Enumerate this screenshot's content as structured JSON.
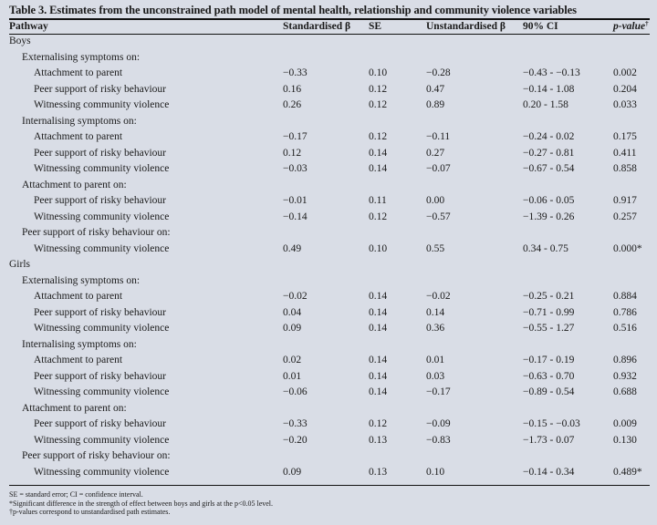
{
  "title": "Table 3. Estimates from the unconstrained path model of mental health, relationship and community violence variables",
  "columns": [
    "Pathway",
    "Standardised β",
    "SE",
    "Unstandardised β",
    "90% CI",
    "p-value",
    "†"
  ],
  "groups": [
    {
      "label": "Boys",
      "sections": [
        {
          "label": "Externalising symptoms on:",
          "rows": [
            [
              "Attachment to parent",
              "−0.33",
              "0.10",
              "−0.28",
              "−0.43 - −0.13",
              "0.002"
            ],
            [
              "Peer support of risky behaviour",
              "0.16",
              "0.12",
              "0.47",
              "−0.14 - 1.08",
              "0.204"
            ],
            [
              "Witnessing community violence",
              "0.26",
              "0.12",
              "0.89",
              "0.20 - 1.58",
              "0.033"
            ]
          ]
        },
        {
          "label": "Internalising symptoms on:",
          "rows": [
            [
              "Attachment to parent",
              "−0.17",
              "0.12",
              "−0.11",
              "−0.24 - 0.02",
              "0.175"
            ],
            [
              "Peer support of risky behaviour",
              "0.12",
              "0.14",
              "0.27",
              "−0.27 - 0.81",
              "0.411"
            ],
            [
              "Witnessing community violence",
              "−0.03",
              "0.14",
              "−0.07",
              "−0.67 - 0.54",
              "0.858"
            ]
          ]
        },
        {
          "label": "Attachment to parent on:",
          "rows": [
            [
              "Peer support of risky behaviour",
              "−0.01",
              "0.11",
              "0.00",
              "−0.06 - 0.05",
              "0.917"
            ],
            [
              "Witnessing community violence",
              "−0.14",
              "0.12",
              "−0.57",
              "−1.39 - 0.26",
              "0.257"
            ]
          ]
        },
        {
          "label": "Peer support of risky behaviour on:",
          "rows": [
            [
              "Witnessing community violence",
              "0.49",
              "0.10",
              "0.55",
              "0.34 - 0.75",
              "0.000*"
            ]
          ]
        }
      ]
    },
    {
      "label": "Girls",
      "sections": [
        {
          "label": "Externalising symptoms on:",
          "rows": [
            [
              "Attachment to parent",
              "−0.02",
              "0.14",
              "−0.02",
              "−0.25 - 0.21",
              "0.884"
            ],
            [
              "Peer support of risky behaviour",
              "0.04",
              "0.14",
              "0.14",
              "−0.71 - 0.99",
              "0.786"
            ],
            [
              "Witnessing community violence",
              "0.09",
              "0.14",
              "0.36",
              "−0.55 - 1.27",
              "0.516"
            ]
          ]
        },
        {
          "label": "Internalising symptoms on:",
          "rows": [
            [
              "Attachment to parent",
              "0.02",
              "0.14",
              "0.01",
              "−0.17 - 0.19",
              "0.896"
            ],
            [
              "Peer support of risky behaviour",
              "0.01",
              "0.14",
              "0.03",
              "−0.63 - 0.70",
              "0.932"
            ],
            [
              "Witnessing community violence",
              "−0.06",
              "0.14",
              "−0.17",
              "−0.89 - 0.54",
              "0.688"
            ]
          ]
        },
        {
          "label": "Attachment to parent on:",
          "rows": [
            [
              "Peer support of risky behaviour",
              "−0.33",
              "0.12",
              "−0.09",
              "−0.15 - −0.03",
              "0.009"
            ],
            [
              "Witnessing community violence",
              "−0.20",
              "0.13",
              "−0.83",
              "−1.73 - 0.07",
              "0.130"
            ]
          ]
        },
        {
          "label": "Peer support of risky behaviour on:",
          "rows": [
            [
              "Witnessing community violence",
              "0.09",
              "0.13",
              "0.10",
              "−0.14 - 0.34",
              "0.489*"
            ]
          ]
        }
      ]
    }
  ],
  "notes": [
    "SE = standard error; CI = confidence interval.",
    "*Significant difference in the strength of effect between boys and girls at the p<0.05 level.",
    "†p-values correspond to unstandardised path estimates."
  ]
}
